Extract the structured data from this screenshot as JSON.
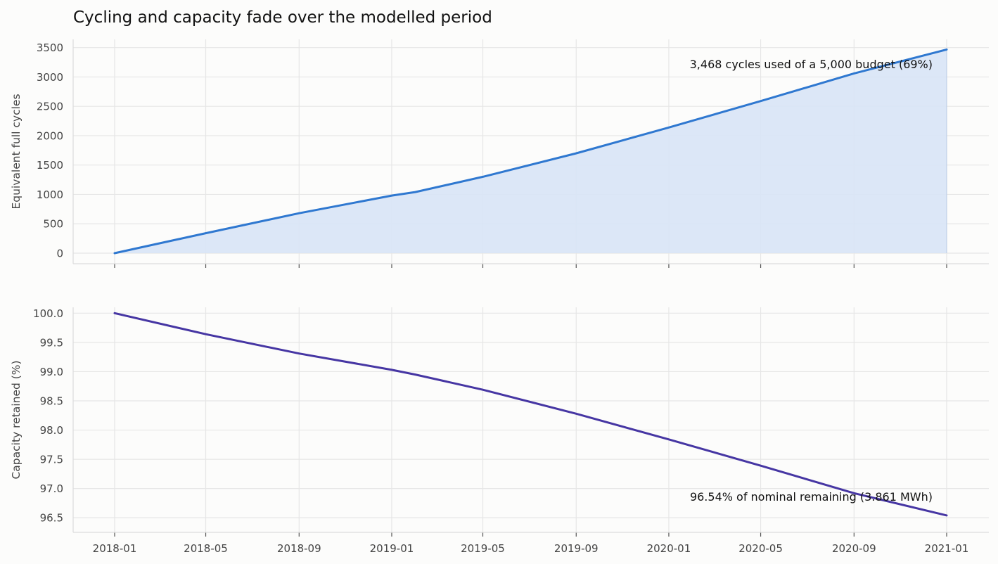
{
  "title": "Cycling and capacity fade over the modelled period",
  "colors": {
    "background": "#fcfcfb",
    "grid": "#e6e6e6",
    "cycles_line": "#2f78d0",
    "cycles_fill": "#d9e5f6",
    "capacity_line": "#4636a3"
  },
  "x_axis": {
    "ticks": [
      "2018-01",
      "2018-05",
      "2018-09",
      "2019-01",
      "2019-05",
      "2019-09",
      "2020-01",
      "2020-05",
      "2020-09",
      "2021-01"
    ]
  },
  "chart_data": [
    {
      "type": "area",
      "ylabel": "Equivalent full cycles",
      "ylim": [
        -180,
        3640
      ],
      "yticks": [
        "0",
        "500",
        "1000",
        "1500",
        "2000",
        "2500",
        "3000",
        "3500"
      ],
      "grid": true,
      "annotation": "3,468 cycles used of a 5,000 budget  (69%)",
      "series": [
        {
          "x": [
            "2018-01-01",
            "2018-05-01",
            "2018-09-01",
            "2019-01-01",
            "2019-02-01",
            "2019-05-01",
            "2019-09-01",
            "2020-01-01",
            "2020-05-01",
            "2020-09-01",
            "2021-01-01"
          ],
          "values": [
            0,
            340,
            680,
            980,
            1040,
            1300,
            1700,
            2140,
            2590,
            3060,
            3468
          ]
        }
      ]
    },
    {
      "type": "line",
      "ylabel": "Capacity retained (%)",
      "ylim": [
        96.25,
        100.1
      ],
      "yticks": [
        "96.5",
        "97.0",
        "97.5",
        "98.0",
        "98.5",
        "99.0",
        "99.5",
        "100.0"
      ],
      "grid": true,
      "annotation": "96.54% of nominal remaining (3.861 MWh)",
      "series": [
        {
          "x": [
            "2018-01-01",
            "2018-05-01",
            "2018-09-01",
            "2019-01-01",
            "2019-02-01",
            "2019-05-01",
            "2019-09-01",
            "2020-01-01",
            "2020-05-01",
            "2020-09-01",
            "2021-01-01"
          ],
          "values": [
            100.0,
            99.64,
            99.31,
            99.03,
            98.95,
            98.69,
            98.28,
            97.84,
            97.39,
            96.92,
            96.54
          ]
        }
      ]
    }
  ]
}
